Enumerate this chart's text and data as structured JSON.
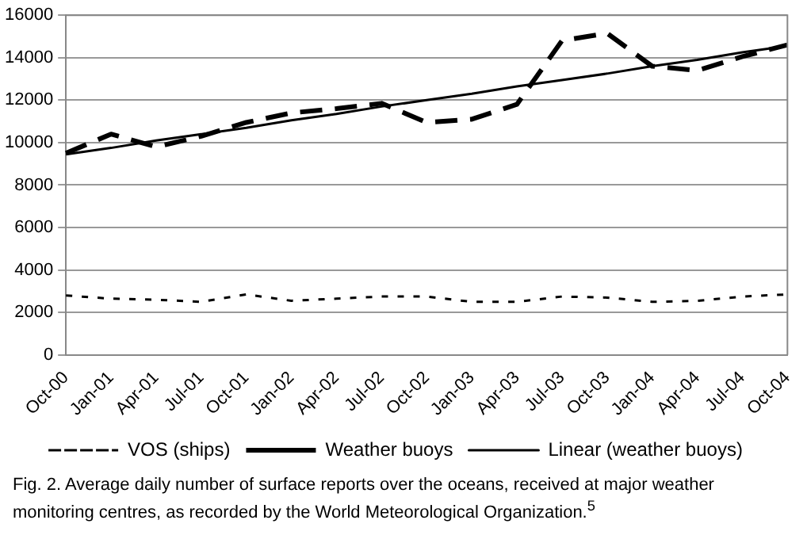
{
  "chart_data": {
    "type": "line",
    "categories": [
      "Oct-00",
      "Jan-01",
      "Apr-01",
      "Jul-01",
      "Oct-01",
      "Jan-02",
      "Apr-02",
      "Jul-02",
      "Oct-02",
      "Jan-03",
      "Apr-03",
      "Jul-03",
      "Oct-03",
      "Jan-04",
      "Apr-04",
      "Jul-04",
      "Oct-04"
    ],
    "series": [
      {
        "name": "VOS (ships)",
        "color": "#000000",
        "line_style": "dotted",
        "values": [
          2800,
          2650,
          2600,
          2500,
          2850,
          2550,
          2650,
          2750,
          2750,
          2500,
          2500,
          2750,
          2700,
          2500,
          2550,
          2750,
          2850
        ]
      },
      {
        "name": "Weather buoys",
        "color": "#000000",
        "line_style": "dashed",
        "values": [
          9500,
          10400,
          9800,
          10300,
          10950,
          11400,
          11600,
          11850,
          10950,
          11100,
          11800,
          14800,
          15150,
          13600,
          13400,
          14050,
          14600
        ]
      },
      {
        "name": "Linear (weather buoys)",
        "color": "#000000",
        "line_style": "solid",
        "values": [
          9450,
          9750,
          10100,
          10400,
          10700,
          11050,
          11350,
          11700,
          12000,
          12300,
          12650,
          12950,
          13250,
          13600,
          13900,
          14250,
          14550
        ]
      }
    ],
    "ylim": [
      0,
      16000
    ],
    "yticks": [
      0,
      2000,
      4000,
      6000,
      8000,
      10000,
      12000,
      14000,
      16000
    ],
    "grid": "y",
    "legend": "bottom",
    "marker": "none",
    "annotations": [
      "Fig. 2. Average daily number of surface reports over the oceans, received at major weather monitoring centres, as recorded by the World Meteorological Organization.$^{5}$"
    ]
  }
}
